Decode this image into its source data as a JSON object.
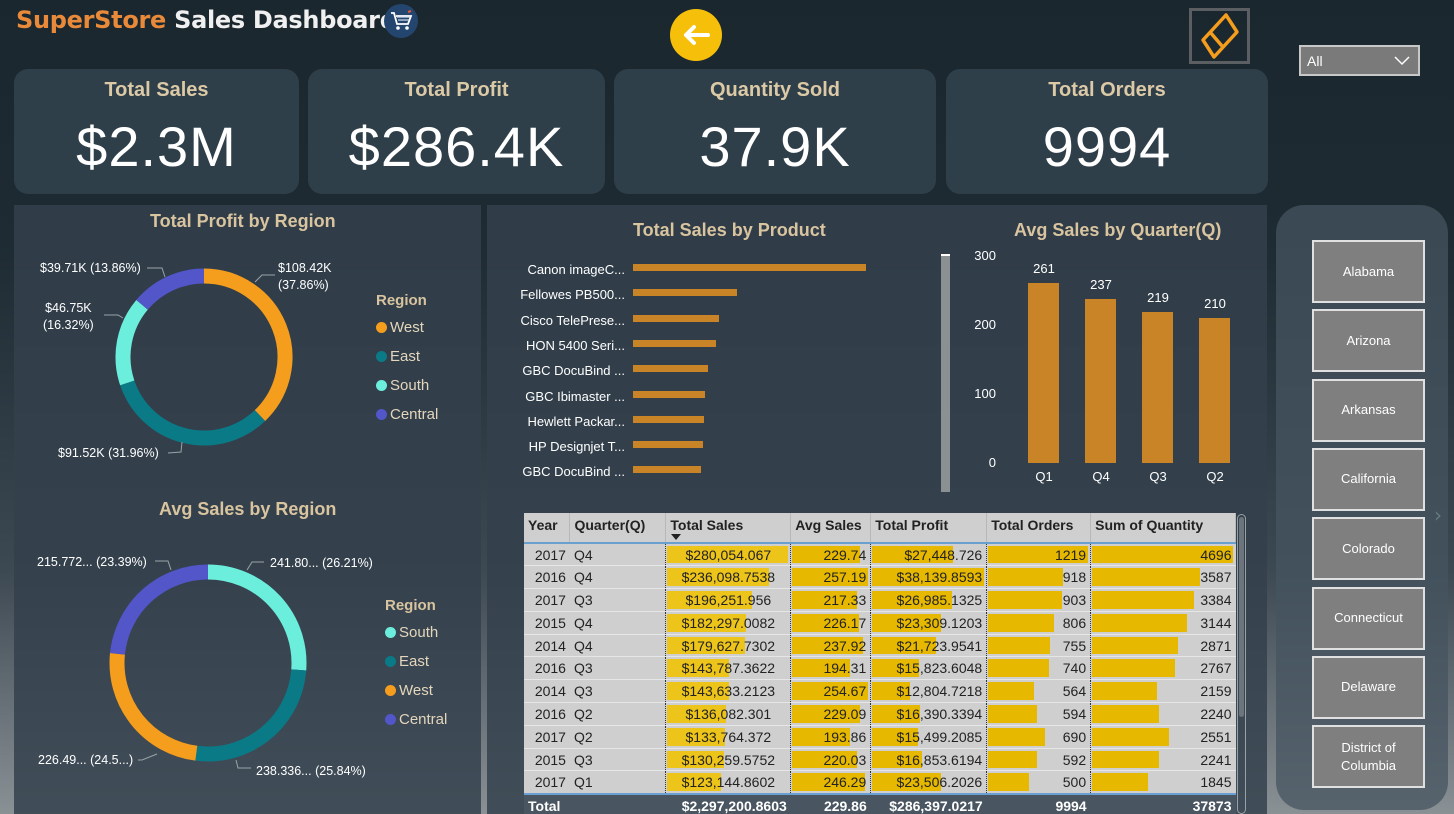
{
  "header": {
    "title_part1": "SuperStore",
    "title_part2": "Sales Dashboard",
    "cart_icon": "shopping-cart-icon",
    "back_icon": "arrow-left-icon",
    "logo_icon": "diamond-logo-icon"
  },
  "filter": {
    "selected": "All",
    "icon": "chevron-down-icon"
  },
  "kpis": [
    {
      "label": "Total Sales",
      "value": "$2.3M"
    },
    {
      "label": "Total Profit",
      "value": "$286.4K"
    },
    {
      "label": "Quantity Sold",
      "value": "37.9K"
    },
    {
      "label": "Total Orders",
      "value": "9994"
    }
  ],
  "colors": {
    "west": "#f59d1d",
    "east": "#0a7a87",
    "south": "#6ceedd",
    "central": "#5256c8",
    "bar": "#c88426",
    "accent": "#f6c00a"
  },
  "chart_data": [
    {
      "type": "pie",
      "title": "Total Profit by Region",
      "legend_title": "Region",
      "legend_placement": "right",
      "slices": [
        {
          "name": "West",
          "value": 108420,
          "label_value": "$108.42K",
          "label_pct": "(37.86%)",
          "pct": 37.86
        },
        {
          "name": "East",
          "value": 91520,
          "label_value": "$91.52K",
          "label_pct": "(31.96%)",
          "pct": 31.96
        },
        {
          "name": "South",
          "value": 46750,
          "label_value": "$46.75K",
          "label_pct": "(16.32%)",
          "pct": 16.32
        },
        {
          "name": "Central",
          "value": 39710,
          "label_value": "$39.71K",
          "label_pct": "(13.86%)",
          "pct": 13.86
        }
      ]
    },
    {
      "type": "pie",
      "title": "Avg Sales by Region",
      "legend_title": "Region",
      "legend_placement": "right",
      "slices": [
        {
          "name": "South",
          "value": 241.8,
          "label": "241.80... (26.21%)",
          "pct": 26.21
        },
        {
          "name": "East",
          "value": 238.336,
          "label": "238.336... (25.84%)",
          "pct": 25.84
        },
        {
          "name": "West",
          "value": 226.49,
          "label": "226.49... (24.5...)",
          "pct": 24.56
        },
        {
          "name": "Central",
          "value": 215.772,
          "label": "215.772... (23.39%)",
          "pct": 23.39
        }
      ]
    },
    {
      "type": "bar",
      "orientation": "horizontal",
      "title": "Total Sales by Product",
      "categories": [
        "Canon imageC...",
        "Fellowes PB500...",
        "Cisco TelePrese...",
        "HON 5400 Seri...",
        "GBC DocuBind ...",
        "GBC Ibimaster ...",
        "Hewlett Packar...",
        "HP Designjet T...",
        "GBC DocuBind ..."
      ],
      "values": [
        61600,
        27500,
        22600,
        21900,
        19800,
        19000,
        18800,
        18400,
        17900
      ]
    },
    {
      "type": "bar",
      "title": "Avg Sales by Quarter(Q)",
      "categories": [
        "Q1",
        "Q4",
        "Q3",
        "Q2"
      ],
      "values": [
        261,
        237,
        219,
        210
      ],
      "yticks": [
        "0",
        "100",
        "200",
        "300"
      ],
      "ylim": [
        0,
        300
      ]
    },
    {
      "type": "table",
      "columns": [
        "Year",
        "Quarter(Q)",
        "Total Sales",
        "Avg Sales",
        "Total Profit",
        "Total Orders",
        "Sum of Quantity"
      ],
      "sorted_by": "Total Sales",
      "rows": [
        [
          "2017",
          "Q4",
          "$280,054.067",
          "229.74",
          "$27,448.726",
          "1219",
          "4696"
        ],
        [
          "2016",
          "Q4",
          "$236,098.7538",
          "257.19",
          "$38,139.8593",
          "918",
          "3587"
        ],
        [
          "2017",
          "Q3",
          "$196,251.956",
          "217.33",
          "$26,985.1325",
          "903",
          "3384"
        ],
        [
          "2015",
          "Q4",
          "$182,297.0082",
          "226.17",
          "$23,309.1203",
          "806",
          "3144"
        ],
        [
          "2014",
          "Q4",
          "$179,627.7302",
          "237.92",
          "$21,723.9541",
          "755",
          "2871"
        ],
        [
          "2016",
          "Q3",
          "$143,787.3622",
          "194.31",
          "$15,823.6048",
          "740",
          "2767"
        ],
        [
          "2014",
          "Q3",
          "$143,633.2123",
          "254.67",
          "$12,804.7218",
          "564",
          "2159"
        ],
        [
          "2016",
          "Q2",
          "$136,082.301",
          "229.09",
          "$16,390.3394",
          "594",
          "2240"
        ],
        [
          "2017",
          "Q2",
          "$133,764.372",
          "193.86",
          "$15,499.2085",
          "690",
          "2551"
        ],
        [
          "2015",
          "Q3",
          "$130,259.5752",
          "220.03",
          "$16,853.6194",
          "592",
          "2241"
        ],
        [
          "2017",
          "Q1",
          "$123,144.8602",
          "246.29",
          "$23,506.2026",
          "500",
          "1845"
        ]
      ],
      "total": [
        "Total",
        "",
        "$2,297,200.8603",
        "229.86",
        "$286,397.0217",
        "9994",
        "37873"
      ]
    }
  ],
  "states": [
    "Alabama",
    "Arizona",
    "Arkansas",
    "California",
    "Colorado",
    "Connecticut",
    "Delaware",
    "District of Columbia"
  ],
  "slicer_next_icon": "chevron-right-icon"
}
